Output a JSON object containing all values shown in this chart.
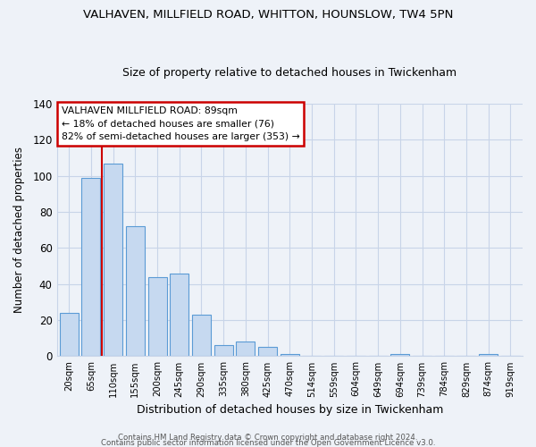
{
  "title": "VALHAVEN, MILLFIELD ROAD, WHITTON, HOUNSLOW, TW4 5PN",
  "subtitle": "Size of property relative to detached houses in Twickenham",
  "xlabel": "Distribution of detached houses by size in Twickenham",
  "ylabel": "Number of detached properties",
  "bar_labels": [
    "20sqm",
    "65sqm",
    "110sqm",
    "155sqm",
    "200sqm",
    "245sqm",
    "290sqm",
    "335sqm",
    "380sqm",
    "425sqm",
    "470sqm",
    "514sqm",
    "559sqm",
    "604sqm",
    "649sqm",
    "694sqm",
    "739sqm",
    "784sqm",
    "829sqm",
    "874sqm",
    "919sqm"
  ],
  "bar_values": [
    24,
    99,
    107,
    72,
    44,
    46,
    23,
    6,
    8,
    5,
    1,
    0,
    0,
    0,
    0,
    1,
    0,
    0,
    0,
    1,
    0
  ],
  "bar_color": "#c6d9f0",
  "bar_edge_color": "#5b9bd5",
  "vline_x": 1.5,
  "vline_color": "#cc0000",
  "ylim": [
    0,
    140
  ],
  "yticks": [
    0,
    20,
    40,
    60,
    80,
    100,
    120,
    140
  ],
  "annotation_title": "VALHAVEN MILLFIELD ROAD: 89sqm",
  "annotation_line1": "← 18% of detached houses are smaller (76)",
  "annotation_line2": "82% of semi-detached houses are larger (353) →",
  "annotation_box_color": "#ffffff",
  "annotation_box_edge": "#cc0000",
  "footer_line1": "Contains HM Land Registry data © Crown copyright and database right 2024.",
  "footer_line2": "Contains public sector information licensed under the Open Government Licence v3.0.",
  "background_color": "#eef2f8",
  "plot_bg_color": "#eef2f8",
  "grid_color": "#c8d4e8"
}
